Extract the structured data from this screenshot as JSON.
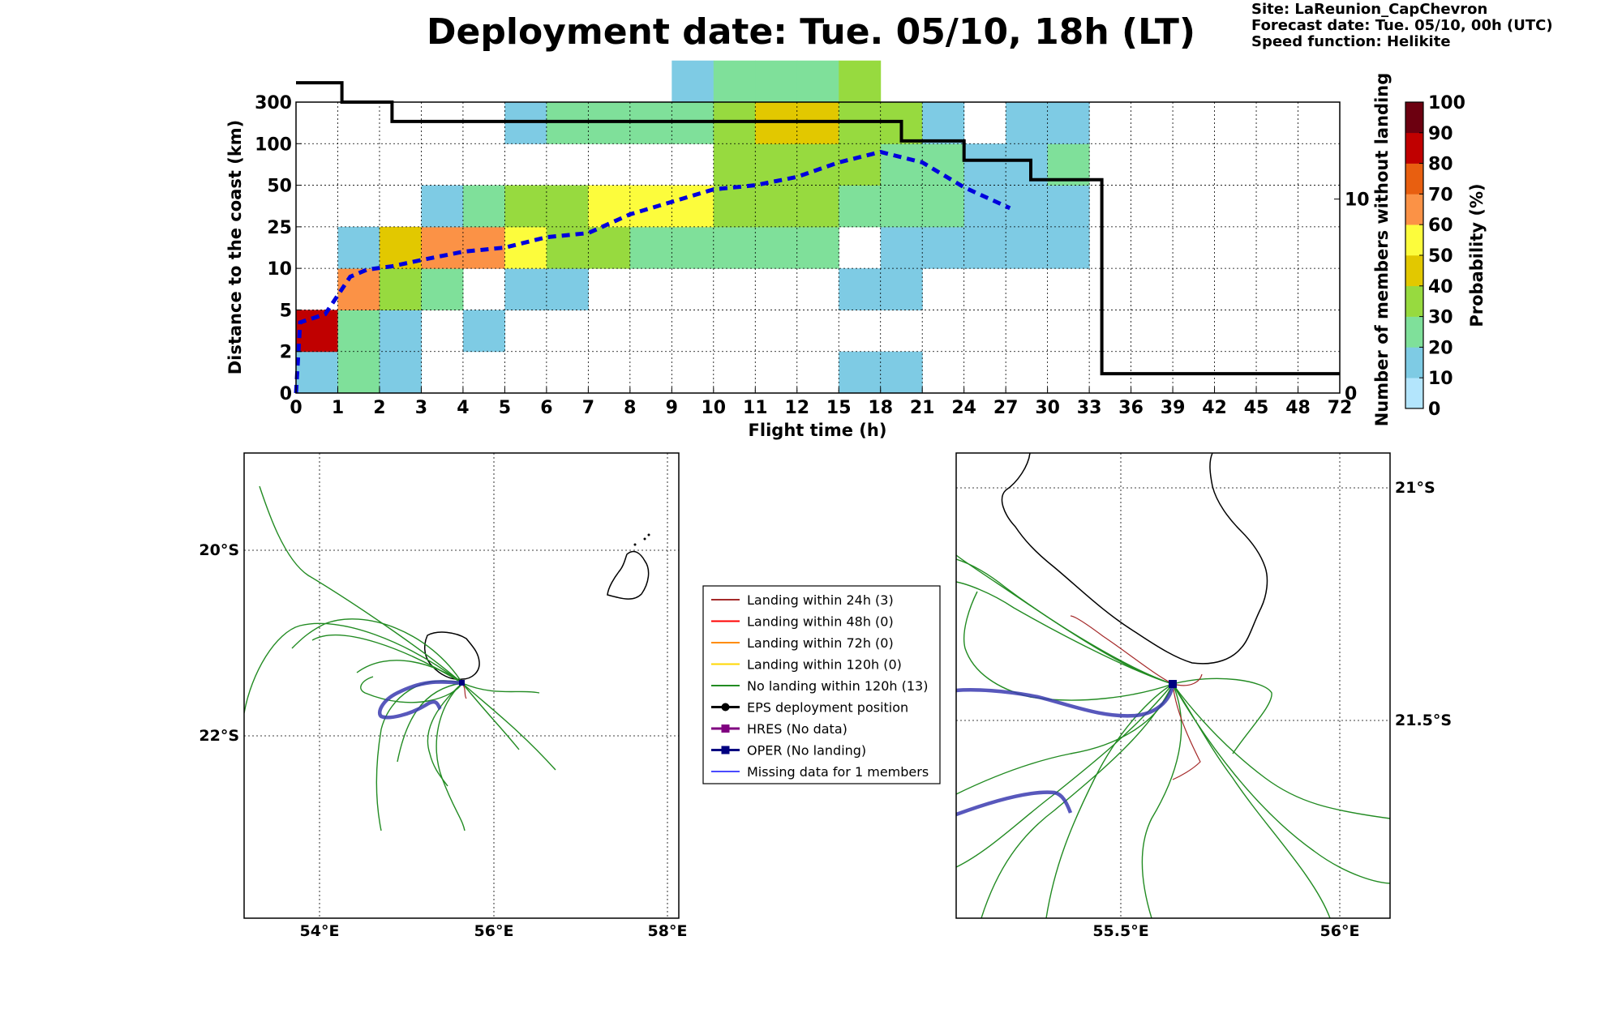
{
  "title": "Deployment date: Tue. 05/10, 18h (LT)",
  "info": {
    "site": "Site: LaReunion_CapChevron",
    "forecast": "Forecast date: Tue. 05/10, 00h (UTC)",
    "speed": "Speed function: Helikite"
  },
  "colors": {
    "bins": [
      "#b3e5fc",
      "#7ecbe4",
      "#7fe09a",
      "#97da3f",
      "#e2c800",
      "#fcfc3c",
      "#fb9246",
      "#e85f10",
      "#c00000",
      "#6c0010"
    ]
  },
  "chart_data": [
    {
      "type": "heatmap",
      "xlabel": "Flight time (h)",
      "ylabel": "Distance to the coast (km)",
      "y2label": "Number of members without landing",
      "colorbar_label": "Probability (%)",
      "x_ticks": [
        "0",
        "1",
        "2",
        "3",
        "4",
        "5",
        "6",
        "7",
        "8",
        "9",
        "10",
        "11",
        "12",
        "15",
        "18",
        "21",
        "24",
        "27",
        "30",
        "33",
        "36",
        "39",
        "42",
        "45",
        "48",
        "72"
      ],
      "y_ticks": [
        "0",
        "2",
        "5",
        "10",
        "25",
        "50",
        "100",
        "300"
      ],
      "y2_ticks": [
        "0",
        "10"
      ],
      "y2lim": [
        0,
        15
      ],
      "colorbar_ticks": [
        "0",
        "10",
        "20",
        "30",
        "40",
        "50",
        "60",
        "70",
        "80",
        "90",
        "100"
      ],
      "cells": [
        {
          "x": 0,
          "y": 0,
          "p": 10
        },
        {
          "x": 0,
          "y": 1,
          "p": 80
        },
        {
          "x": 1,
          "y": 0,
          "p": 20
        },
        {
          "x": 1,
          "y": 1,
          "p": 20
        },
        {
          "x": 1,
          "y": 2,
          "p": 60
        },
        {
          "x": 1,
          "y": 3,
          "p": 10
        },
        {
          "x": 2,
          "y": 0,
          "p": 10
        },
        {
          "x": 2,
          "y": 1,
          "p": 10
        },
        {
          "x": 2,
          "y": 2,
          "p": 30
        },
        {
          "x": 2,
          "y": 3,
          "p": 40
        },
        {
          "x": 3,
          "y": 2,
          "p": 20
        },
        {
          "x": 3,
          "y": 3,
          "p": 60
        },
        {
          "x": 3,
          "y": 4,
          "p": 10
        },
        {
          "x": 4,
          "y": 1,
          "p": 10
        },
        {
          "x": 4,
          "y": 3,
          "p": 60
        },
        {
          "x": 4,
          "y": 4,
          "p": 20
        },
        {
          "x": 5,
          "y": 2,
          "p": 10
        },
        {
          "x": 5,
          "y": 3,
          "p": 50
        },
        {
          "x": 5,
          "y": 4,
          "p": 30
        },
        {
          "x": 5,
          "y": 6,
          "p": 10
        },
        {
          "x": 6,
          "y": 2,
          "p": 10
        },
        {
          "x": 6,
          "y": 3,
          "p": 30
        },
        {
          "x": 6,
          "y": 4,
          "p": 30
        },
        {
          "x": 6,
          "y": 6,
          "p": 20
        },
        {
          "x": 7,
          "y": 3,
          "p": 30
        },
        {
          "x": 7,
          "y": 4,
          "p": 50
        },
        {
          "x": 7,
          "y": 6,
          "p": 20
        },
        {
          "x": 8,
          "y": 3,
          "p": 20
        },
        {
          "x": 8,
          "y": 4,
          "p": 50
        },
        {
          "x": 8,
          "y": 6,
          "p": 20
        },
        {
          "x": 9,
          "y": 3,
          "p": 20
        },
        {
          "x": 9,
          "y": 4,
          "p": 50
        },
        {
          "x": 9,
          "y": 6,
          "p": 20
        },
        {
          "x": 9,
          "y": 7,
          "p": 10
        },
        {
          "x": 10,
          "y": 3,
          "p": 20
        },
        {
          "x": 10,
          "y": 4,
          "p": 30
        },
        {
          "x": 10,
          "y": 5,
          "p": 30
        },
        {
          "x": 10,
          "y": 6,
          "p": 30
        },
        {
          "x": 10,
          "y": 7,
          "p": 20
        },
        {
          "x": 11,
          "y": 3,
          "p": 20
        },
        {
          "x": 11,
          "y": 4,
          "p": 30
        },
        {
          "x": 11,
          "y": 5,
          "p": 30
        },
        {
          "x": 11,
          "y": 6,
          "p": 40
        },
        {
          "x": 11,
          "y": 7,
          "p": 20
        },
        {
          "x": 12,
          "y": 3,
          "p": 20
        },
        {
          "x": 12,
          "y": 4,
          "p": 30
        },
        {
          "x": 12,
          "y": 5,
          "p": 30
        },
        {
          "x": 12,
          "y": 6,
          "p": 40
        },
        {
          "x": 12,
          "y": 7,
          "p": 20
        },
        {
          "x": 13,
          "y": 0,
          "p": 10
        },
        {
          "x": 13,
          "y": 2,
          "p": 10
        },
        {
          "x": 13,
          "y": 4,
          "p": 20
        },
        {
          "x": 13,
          "y": 5,
          "p": 30
        },
        {
          "x": 13,
          "y": 6,
          "p": 30
        },
        {
          "x": 13,
          "y": 7,
          "p": 30
        },
        {
          "x": 14,
          "y": 0,
          "p": 10
        },
        {
          "x": 14,
          "y": 2,
          "p": 10
        },
        {
          "x": 14,
          "y": 3,
          "p": 10
        },
        {
          "x": 14,
          "y": 4,
          "p": 20
        },
        {
          "x": 14,
          "y": 5,
          "p": 20
        },
        {
          "x": 14,
          "y": 6,
          "p": 30
        },
        {
          "x": 15,
          "y": 3,
          "p": 10
        },
        {
          "x": 15,
          "y": 4,
          "p": 20
        },
        {
          "x": 15,
          "y": 5,
          "p": 20
        },
        {
          "x": 15,
          "y": 6,
          "p": 10
        },
        {
          "x": 16,
          "y": 3,
          "p": 10
        },
        {
          "x": 16,
          "y": 4,
          "p": 10
        },
        {
          "x": 16,
          "y": 5,
          "p": 10
        },
        {
          "x": 17,
          "y": 3,
          "p": 10
        },
        {
          "x": 17,
          "y": 4,
          "p": 10
        },
        {
          "x": 17,
          "y": 5,
          "p": 10
        },
        {
          "x": 17,
          "y": 6,
          "p": 10
        },
        {
          "x": 18,
          "y": 3,
          "p": 10
        },
        {
          "x": 18,
          "y": 4,
          "p": 10
        },
        {
          "x": 18,
          "y": 5,
          "p": 20
        },
        {
          "x": 18,
          "y": 6,
          "p": 10
        }
      ],
      "members_without_landing": [
        {
          "x": 0,
          "n": 16
        },
        {
          "x": 1.1,
          "n": 16
        },
        {
          "x": 1.1,
          "n": 15
        },
        {
          "x": 2.3,
          "n": 15
        },
        {
          "x": 2.3,
          "n": 14
        },
        {
          "x": 14.5,
          "n": 14
        },
        {
          "x": 14.5,
          "n": 13
        },
        {
          "x": 16,
          "n": 13
        },
        {
          "x": 16,
          "n": 12
        },
        {
          "x": 17.6,
          "n": 12
        },
        {
          "x": 17.6,
          "n": 11
        },
        {
          "x": 19.3,
          "n": 11
        },
        {
          "x": 19.3,
          "n": 1
        },
        {
          "x": 25,
          "n": 1
        }
      ],
      "oper_distance": [
        {
          "x": 0,
          "y": 0
        },
        {
          "x": 0.1,
          "y": 1.7
        },
        {
          "x": 0.7,
          "y": 1.9
        },
        {
          "x": 1.3,
          "y": 2.8
        },
        {
          "x": 1.7,
          "y": 2.97
        },
        {
          "x": 2.3,
          "y": 3.05
        },
        {
          "x": 3,
          "y": 3.2
        },
        {
          "x": 4,
          "y": 3.4
        },
        {
          "x": 5,
          "y": 3.5
        },
        {
          "x": 6,
          "y": 3.75
        },
        {
          "x": 7,
          "y": 3.85
        },
        {
          "x": 8,
          "y": 4.3
        },
        {
          "x": 9,
          "y": 4.6
        },
        {
          "x": 10,
          "y": 4.9
        },
        {
          "x": 11,
          "y": 5.0
        },
        {
          "x": 12,
          "y": 5.2
        },
        {
          "x": 13,
          "y": 5.55
        },
        {
          "x": 14,
          "y": 5.8
        },
        {
          "x": 15,
          "y": 5.55
        },
        {
          "x": 16,
          "y": 4.95
        },
        {
          "x": 17.1,
          "y": 4.45
        }
      ]
    }
  ],
  "legend": [
    {
      "label": "Landing within 24h (3)",
      "color": "#a52a2a",
      "marker": "none"
    },
    {
      "label": "Landing within 48h (0)",
      "color": "#ff0000",
      "marker": "none"
    },
    {
      "label": "Landing within 72h (0)",
      "color": "#ff8c00",
      "marker": "none"
    },
    {
      "label": "Landing within 120h (0)",
      "color": "#ffd700",
      "marker": "none"
    },
    {
      "label": "No landing within 120h (13)",
      "color": "#228b22",
      "marker": "none"
    },
    {
      "label": "EPS deployment position",
      "color": "#000000",
      "marker": "circle"
    },
    {
      "label": "HRES (No data)",
      "color": "#800080",
      "marker": "square"
    },
    {
      "label": "OPER (No landing)",
      "color": "#000080",
      "marker": "square"
    },
    {
      "label": "Missing data for 1 members",
      "color": "#4a4aff",
      "marker": "none"
    }
  ],
  "map_left": {
    "lat_labels": [
      "20°S",
      "22°S"
    ],
    "lon_labels": [
      "54°E",
      "56°E",
      "58°E"
    ]
  },
  "map_right": {
    "lat_labels": [
      "21°S",
      "21.5°S"
    ],
    "lon_labels": [
      "55.5°E",
      "56°E"
    ]
  }
}
